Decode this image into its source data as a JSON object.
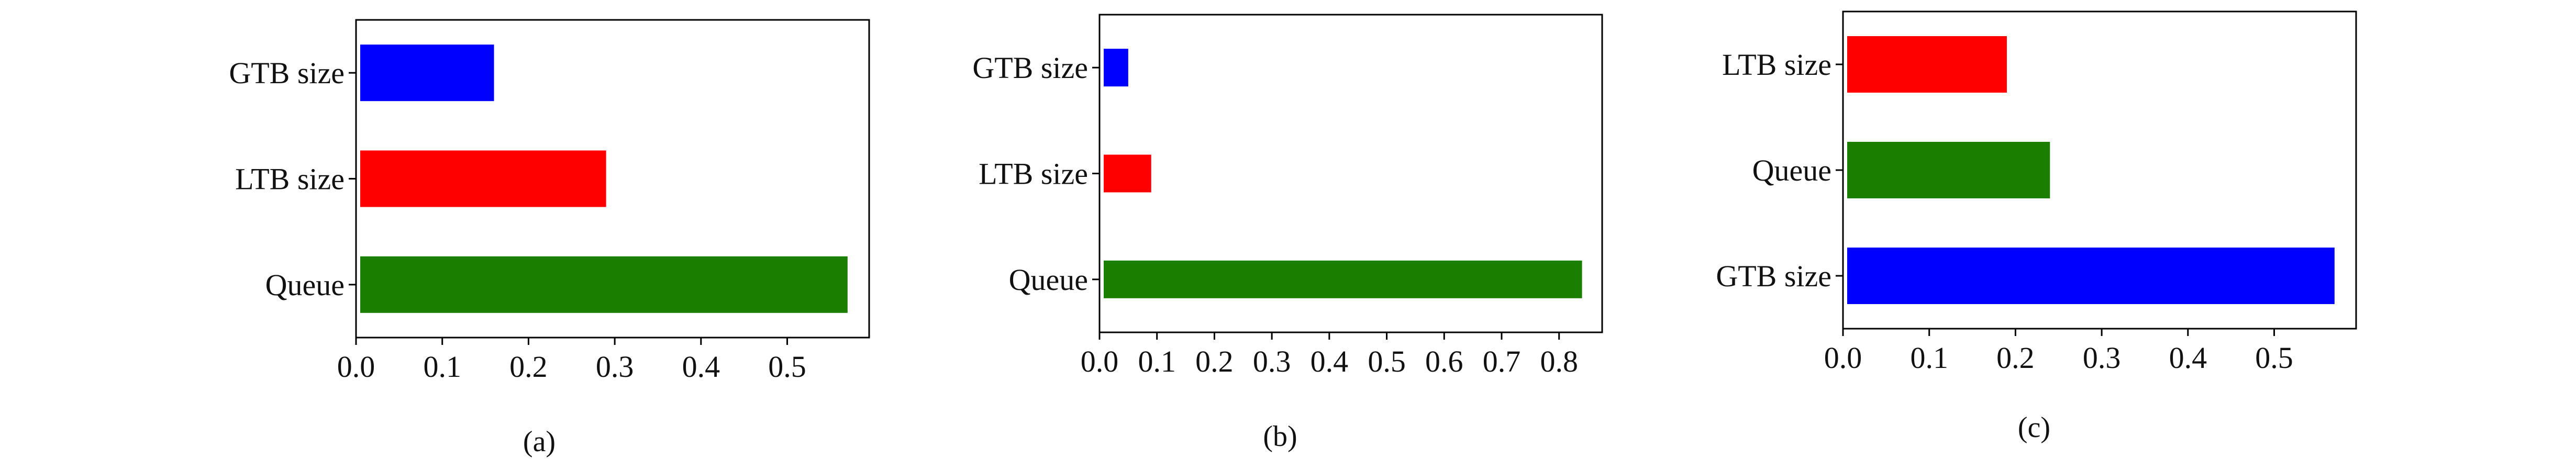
{
  "chart_data": [
    {
      "type": "bar",
      "orientation": "horizontal",
      "caption": "(a)",
      "categories": [
        "GTB size",
        "LTB size",
        "Queue"
      ],
      "values": [
        0.16,
        0.29,
        0.57
      ],
      "bar_colors": [
        "#0000ff",
        "#ff0000",
        "#1a7f00"
      ],
      "xticks": [
        "0.0",
        "0.1",
        "0.2",
        "0.3",
        "0.4",
        "0.5"
      ],
      "xlim": [
        0,
        0.595
      ],
      "grid": false,
      "title": "",
      "xlabel": "",
      "ylabel": ""
    },
    {
      "type": "bar",
      "orientation": "horizontal",
      "caption": "(b)",
      "categories": [
        "GTB size",
        "LTB size",
        "Queue"
      ],
      "values": [
        0.05,
        0.09,
        0.84
      ],
      "bar_colors": [
        "#0000ff",
        "#ff0000",
        "#1a7f00"
      ],
      "xticks": [
        "0.0",
        "0.1",
        "0.2",
        "0.3",
        "0.4",
        "0.5",
        "0.6",
        "0.7",
        "0.8"
      ],
      "xlim": [
        0,
        0.875
      ],
      "grid": false,
      "title": "",
      "xlabel": "",
      "ylabel": ""
    },
    {
      "type": "bar",
      "orientation": "horizontal",
      "caption": "(c)",
      "categories": [
        "LTB size",
        "Queue",
        "GTB size"
      ],
      "values": [
        0.19,
        0.24,
        0.57
      ],
      "bar_colors": [
        "#ff0000",
        "#1a7f00",
        "#0000ff"
      ],
      "xticks": [
        "0.0",
        "0.1",
        "0.2",
        "0.3",
        "0.4",
        "0.5"
      ],
      "xlim": [
        0,
        0.595
      ],
      "grid": false,
      "title": "",
      "xlabel": "",
      "ylabel": ""
    }
  ]
}
